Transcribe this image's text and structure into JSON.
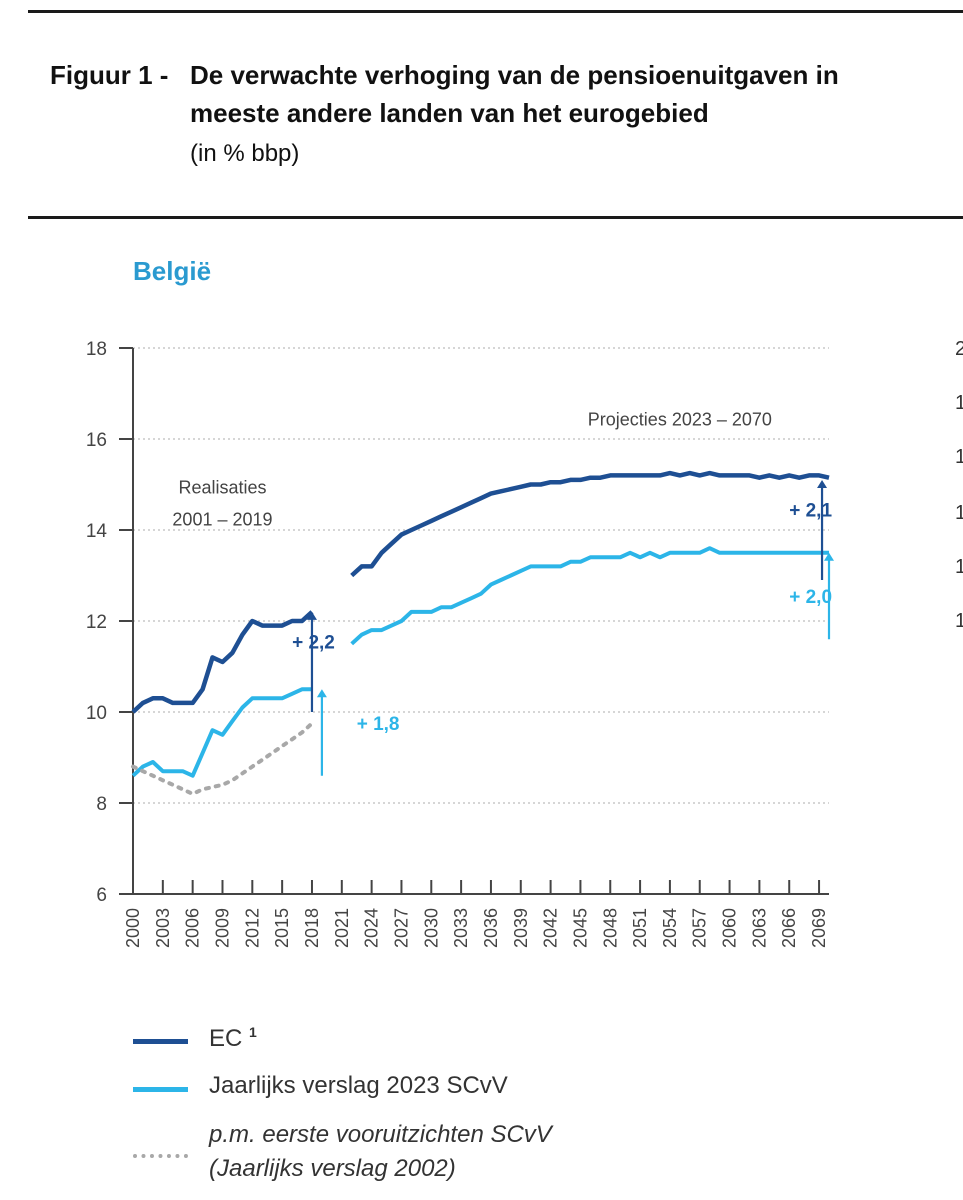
{
  "figure": {
    "label": "Figuur 1 -",
    "title_line1": "De verwachte verhoging van de pensioenuitgaven in",
    "title_line2": "meeste andere landen van het eurogebied",
    "unit": "(in % bbp)"
  },
  "panel": {
    "title": "België"
  },
  "right_panel_ticks": [
    "2",
    "1",
    "1",
    "1",
    "1",
    "1"
  ],
  "legend": {
    "ec": "EC",
    "ec_sup": "1",
    "scvv": "Jaarlijks verslag 2023 SCvV",
    "pm_line1": "p.m. eerste vooruitzichten SCvV",
    "pm_line2": "(Jaarlijks verslag 2002)"
  },
  "chart_data": {
    "type": "line",
    "ylim": [
      6,
      18
    ],
    "yticks": [
      6,
      8,
      10,
      12,
      14,
      16,
      18
    ],
    "xlim": [
      2000,
      2070
    ],
    "xtick_labels": [
      "2000",
      "2003",
      "2006",
      "2009",
      "2012",
      "2015",
      "2018",
      "2021",
      "2024",
      "2027",
      "2030",
      "2033",
      "2036",
      "2039",
      "2042",
      "2045",
      "2048",
      "2051",
      "2054",
      "2057",
      "2060",
      "2063",
      "2066",
      "2069"
    ],
    "grid": "horizontal dotted",
    "colors": {
      "ec": "#1e4f93",
      "scvv": "#2cb5e8",
      "pm": "#a8a8a8"
    },
    "series": [
      {
        "name": "EC",
        "segments": [
          {
            "x": [
              2000,
              2001,
              2002,
              2003,
              2004,
              2005,
              2006,
              2007,
              2008,
              2009,
              2010,
              2011,
              2012,
              2013,
              2014,
              2015,
              2016,
              2017,
              2018
            ],
            "y": [
              10.0,
              10.2,
              10.3,
              10.3,
              10.2,
              10.2,
              10.2,
              10.5,
              11.2,
              11.1,
              11.3,
              11.7,
              12.0,
              11.9,
              11.9,
              11.9,
              12.0,
              12.0,
              12.2
            ]
          },
          {
            "x": [
              2022,
              2023,
              2024,
              2025,
              2026,
              2027,
              2028,
              2029,
              2030,
              2031,
              2032,
              2033,
              2034,
              2035,
              2036,
              2037,
              2038,
              2039,
              2040,
              2041,
              2042,
              2043,
              2044,
              2045,
              2046,
              2047,
              2048,
              2049,
              2050,
              2051,
              2052,
              2053,
              2054,
              2055,
              2056,
              2057,
              2058,
              2059,
              2060,
              2061,
              2062,
              2063,
              2064,
              2065,
              2066,
              2067,
              2068,
              2069,
              2070
            ],
            "y": [
              13.0,
              13.2,
              13.2,
              13.5,
              13.7,
              13.9,
              14.0,
              14.1,
              14.2,
              14.3,
              14.4,
              14.5,
              14.6,
              14.7,
              14.8,
              14.85,
              14.9,
              14.95,
              15.0,
              15.0,
              15.05,
              15.05,
              15.1,
              15.1,
              15.15,
              15.15,
              15.2,
              15.2,
              15.2,
              15.2,
              15.2,
              15.2,
              15.25,
              15.2,
              15.25,
              15.2,
              15.25,
              15.2,
              15.2,
              15.2,
              15.2,
              15.15,
              15.2,
              15.15,
              15.2,
              15.15,
              15.2,
              15.2,
              15.15
            ]
          }
        ]
      },
      {
        "name": "Jaarlijks verslag 2023 SCvV",
        "segments": [
          {
            "x": [
              2000,
              2001,
              2002,
              2003,
              2004,
              2005,
              2006,
              2007,
              2008,
              2009,
              2010,
              2011,
              2012,
              2013,
              2014,
              2015,
              2016,
              2017,
              2018
            ],
            "y": [
              8.6,
              8.8,
              8.9,
              8.7,
              8.7,
              8.7,
              8.6,
              9.1,
              9.6,
              9.5,
              9.8,
              10.1,
              10.3,
              10.3,
              10.3,
              10.3,
              10.4,
              10.5,
              10.5
            ]
          },
          {
            "x": [
              2022,
              2023,
              2024,
              2025,
              2026,
              2027,
              2028,
              2029,
              2030,
              2031,
              2032,
              2033,
              2034,
              2035,
              2036,
              2037,
              2038,
              2039,
              2040,
              2041,
              2042,
              2043,
              2044,
              2045,
              2046,
              2047,
              2048,
              2049,
              2050,
              2051,
              2052,
              2053,
              2054,
              2055,
              2056,
              2057,
              2058,
              2059,
              2060,
              2061,
              2062,
              2063,
              2064,
              2065,
              2066,
              2067,
              2068,
              2069,
              2070
            ],
            "y": [
              11.5,
              11.7,
              11.8,
              11.8,
              11.9,
              12.0,
              12.2,
              12.2,
              12.2,
              12.3,
              12.3,
              12.4,
              12.5,
              12.6,
              12.8,
              12.9,
              13.0,
              13.1,
              13.2,
              13.2,
              13.2,
              13.2,
              13.3,
              13.3,
              13.4,
              13.4,
              13.4,
              13.4,
              13.5,
              13.4,
              13.5,
              13.4,
              13.5,
              13.5,
              13.5,
              13.5,
              13.6,
              13.5,
              13.5,
              13.5,
              13.5,
              13.5,
              13.5,
              13.5,
              13.5,
              13.5,
              13.5,
              13.5,
              13.5
            ]
          }
        ]
      },
      {
        "name": "p.m. eerste vooruitzichten SCvV",
        "dashed": true,
        "segments": [
          {
            "x": [
              2000,
              2001,
              2002,
              2003,
              2004,
              2005,
              2006,
              2007,
              2008,
              2009,
              2010,
              2011,
              2012,
              2013,
              2014,
              2015,
              2016,
              2017,
              2018
            ],
            "y": [
              8.8,
              8.7,
              8.6,
              8.5,
              8.4,
              8.3,
              8.2,
              8.3,
              8.35,
              8.4,
              8.5,
              8.65,
              8.8,
              8.95,
              9.1,
              9.25,
              9.4,
              9.55,
              9.75
            ]
          }
        ]
      }
    ],
    "annotations": [
      {
        "text": "Realisaties",
        "x": 2009,
        "y": 14.8
      },
      {
        "text": "2001 – 2019",
        "x": 2009,
        "y": 14.1
      },
      {
        "text": "Projecties 2023 – 2070",
        "x": 2055,
        "y": 16.3
      },
      {
        "text": "+ 2,2",
        "x": 2016,
        "y": 11.4,
        "color": "ec"
      },
      {
        "text": "+ 1,8",
        "x": 2022.5,
        "y": 9.6,
        "color": "scvv"
      },
      {
        "text": "+ 2,1",
        "x": 2066,
        "y": 14.3,
        "color": "ec"
      },
      {
        "text": "+ 2,0",
        "x": 2066,
        "y": 12.4,
        "color": "scvv"
      }
    ],
    "arrows": [
      {
        "x": 2018,
        "from": 10.0,
        "to": 12.2,
        "color": "ec"
      },
      {
        "x": 2019,
        "from": 8.6,
        "to": 10.5,
        "color": "scvv"
      },
      {
        "x": 2069.3,
        "from": 12.9,
        "to": 15.1,
        "color": "ec"
      },
      {
        "x": 2070,
        "from": 11.6,
        "to": 13.5,
        "color": "scvv"
      }
    ]
  }
}
